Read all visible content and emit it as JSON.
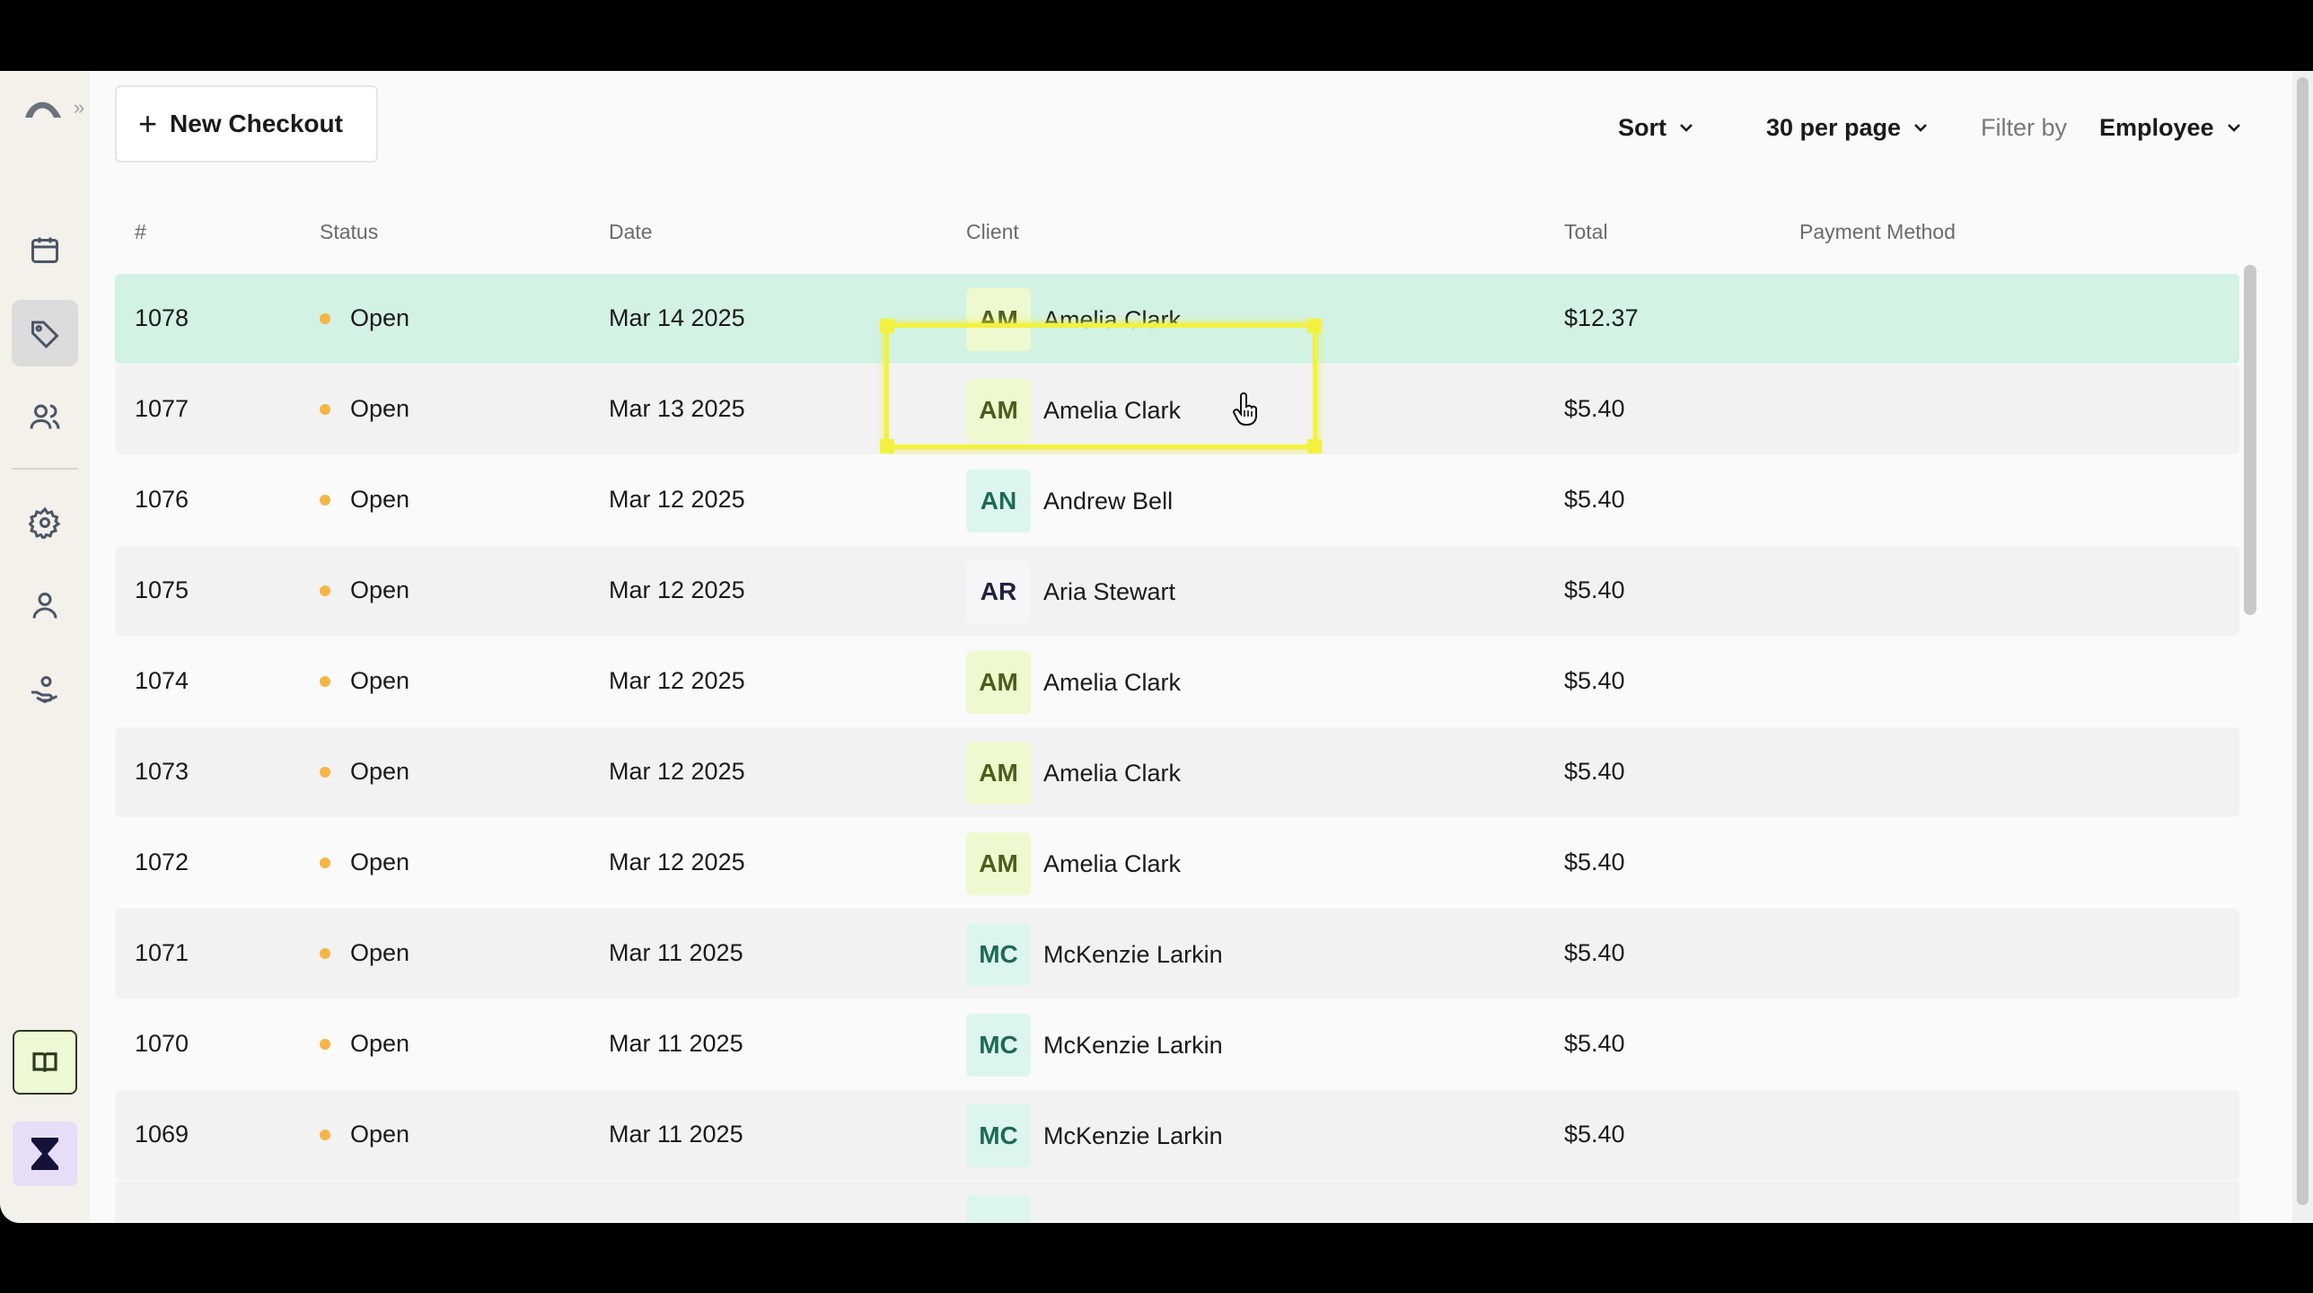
{
  "sidebar": {
    "icons": [
      "logo-icon",
      "calendar-icon",
      "tag-icon",
      "users-icon",
      "gear-icon",
      "person-icon",
      "hand-heart-icon",
      "book-icon",
      "hourglass-icon"
    ],
    "active": "tag-icon"
  },
  "toolbar": {
    "new_checkout_label": "New Checkout",
    "sort_label": "Sort",
    "per_page_label": "30 per page",
    "filter_label": "Filter by",
    "filter_value": "Employee"
  },
  "table": {
    "columns": [
      "#",
      "Status",
      "Date",
      "Client",
      "Total",
      "Payment Method"
    ],
    "rows": [
      {
        "num": "1078",
        "status": "Open",
        "date": "Mar 14 2025",
        "initials": "AM",
        "client": "Amelia Clark",
        "total": "$12.37",
        "payment": ""
      },
      {
        "num": "1077",
        "status": "Open",
        "date": "Mar 13 2025",
        "initials": "AM",
        "client": "Amelia Clark",
        "total": "$5.40",
        "payment": ""
      },
      {
        "num": "1076",
        "status": "Open",
        "date": "Mar 12 2025",
        "initials": "AN",
        "client": "Andrew Bell",
        "total": "$5.40",
        "payment": ""
      },
      {
        "num": "1075",
        "status": "Open",
        "date": "Mar 12 2025",
        "initials": "AR",
        "client": "Aria Stewart",
        "total": "$5.40",
        "payment": ""
      },
      {
        "num": "1074",
        "status": "Open",
        "date": "Mar 12 2025",
        "initials": "AM",
        "client": "Amelia Clark",
        "total": "$5.40",
        "payment": ""
      },
      {
        "num": "1073",
        "status": "Open",
        "date": "Mar 12 2025",
        "initials": "AM",
        "client": "Amelia Clark",
        "total": "$5.40",
        "payment": ""
      },
      {
        "num": "1072",
        "status": "Open",
        "date": "Mar 12 2025",
        "initials": "AM",
        "client": "Amelia Clark",
        "total": "$5.40",
        "payment": ""
      },
      {
        "num": "1071",
        "status": "Open",
        "date": "Mar 11 2025",
        "initials": "MC",
        "client": "McKenzie Larkin",
        "total": "$5.40",
        "payment": ""
      },
      {
        "num": "1070",
        "status": "Open",
        "date": "Mar 11 2025",
        "initials": "MC",
        "client": "McKenzie Larkin",
        "total": "$5.40",
        "payment": ""
      },
      {
        "num": "1069",
        "status": "Open",
        "date": "Mar 11 2025",
        "initials": "MC",
        "client": "McKenzie Larkin",
        "total": "$5.40",
        "payment": ""
      }
    ]
  },
  "colors": {
    "selected_row": "#d2f2e3",
    "status_open_dot": "#f5b545",
    "highlight": "#f2f23e"
  }
}
